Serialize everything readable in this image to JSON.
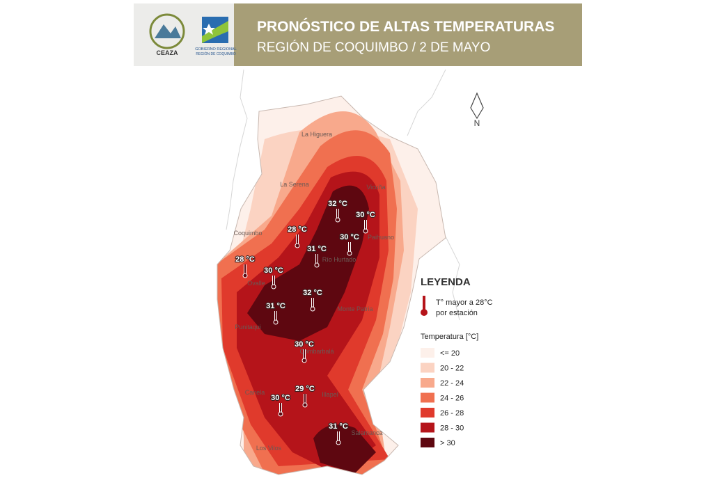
{
  "header": {
    "title": "PRONÓSTICO DE ALTAS TEMPERATURAS",
    "subtitle": "REGIÓN DE COQUIMBO / 2 DE MAYO",
    "logos": [
      "CEAZA",
      "GOBIERNO REGIONAL",
      "REGIÓN DE COQUIMBO"
    ]
  },
  "places": [
    "La Higuera",
    "La Serena",
    "Vicuña",
    "Coquimbo",
    "Paihuano",
    "Río Hurtado",
    "Ovalle",
    "Monte Patria",
    "Punitaqui",
    "Combarbalá",
    "Canela",
    "Illapel",
    "Salamanca",
    "Los Vilos"
  ],
  "stations": [
    "32 °C",
    "30 °C",
    "28 °C",
    "30 °C",
    "31 °C",
    "28 °C",
    "30 °C",
    "32 °C",
    "31 °C",
    "30 °C",
    "29 °C",
    "30 °C",
    "31 °C"
  ],
  "north": "N",
  "legend": {
    "title": "LEYENDA",
    "station_note": [
      "T° mayor a 28°C",
      "por estación"
    ],
    "scale_title": "Temperatura [°C]",
    "items": [
      {
        "label": "<= 20",
        "color": "#fdf0ea"
      },
      {
        "label": "20 - 22",
        "color": "#fbd3c2"
      },
      {
        "label": "22 - 24",
        "color": "#f8a98c"
      },
      {
        "label": "24 - 26",
        "color": "#f07050"
      },
      {
        "label": "26 - 28",
        "color": "#e03a2c"
      },
      {
        "label": "28 - 30",
        "color": "#b5141a"
      },
      {
        "label": "> 30",
        "color": "#5e0710"
      }
    ]
  }
}
